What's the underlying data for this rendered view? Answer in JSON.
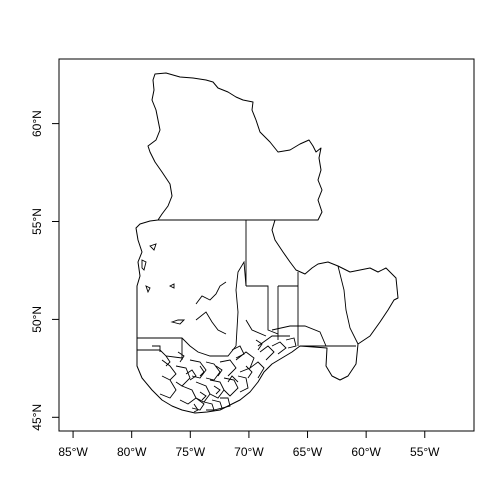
{
  "map": {
    "region": "Quebec",
    "projection": "longitude/latitude (plate carrée)",
    "x_axis": {
      "ticks": [
        "85°W",
        "80°W",
        "75°W",
        "70°W",
        "65°W",
        "60°W",
        "55°W"
      ],
      "values": [
        -85,
        -80,
        -75,
        -70,
        -65,
        -60,
        -55
      ],
      "range": [
        -86.2,
        -50.8
      ]
    },
    "y_axis": {
      "ticks": [
        "45°N",
        "50°N",
        "55°N",
        "60°N"
      ],
      "values": [
        45,
        50,
        55,
        60
      ],
      "range": [
        44.3,
        63.3
      ]
    },
    "style": {
      "stroke": "#000000",
      "fill": "none",
      "background": "#ffffff"
    }
  }
}
